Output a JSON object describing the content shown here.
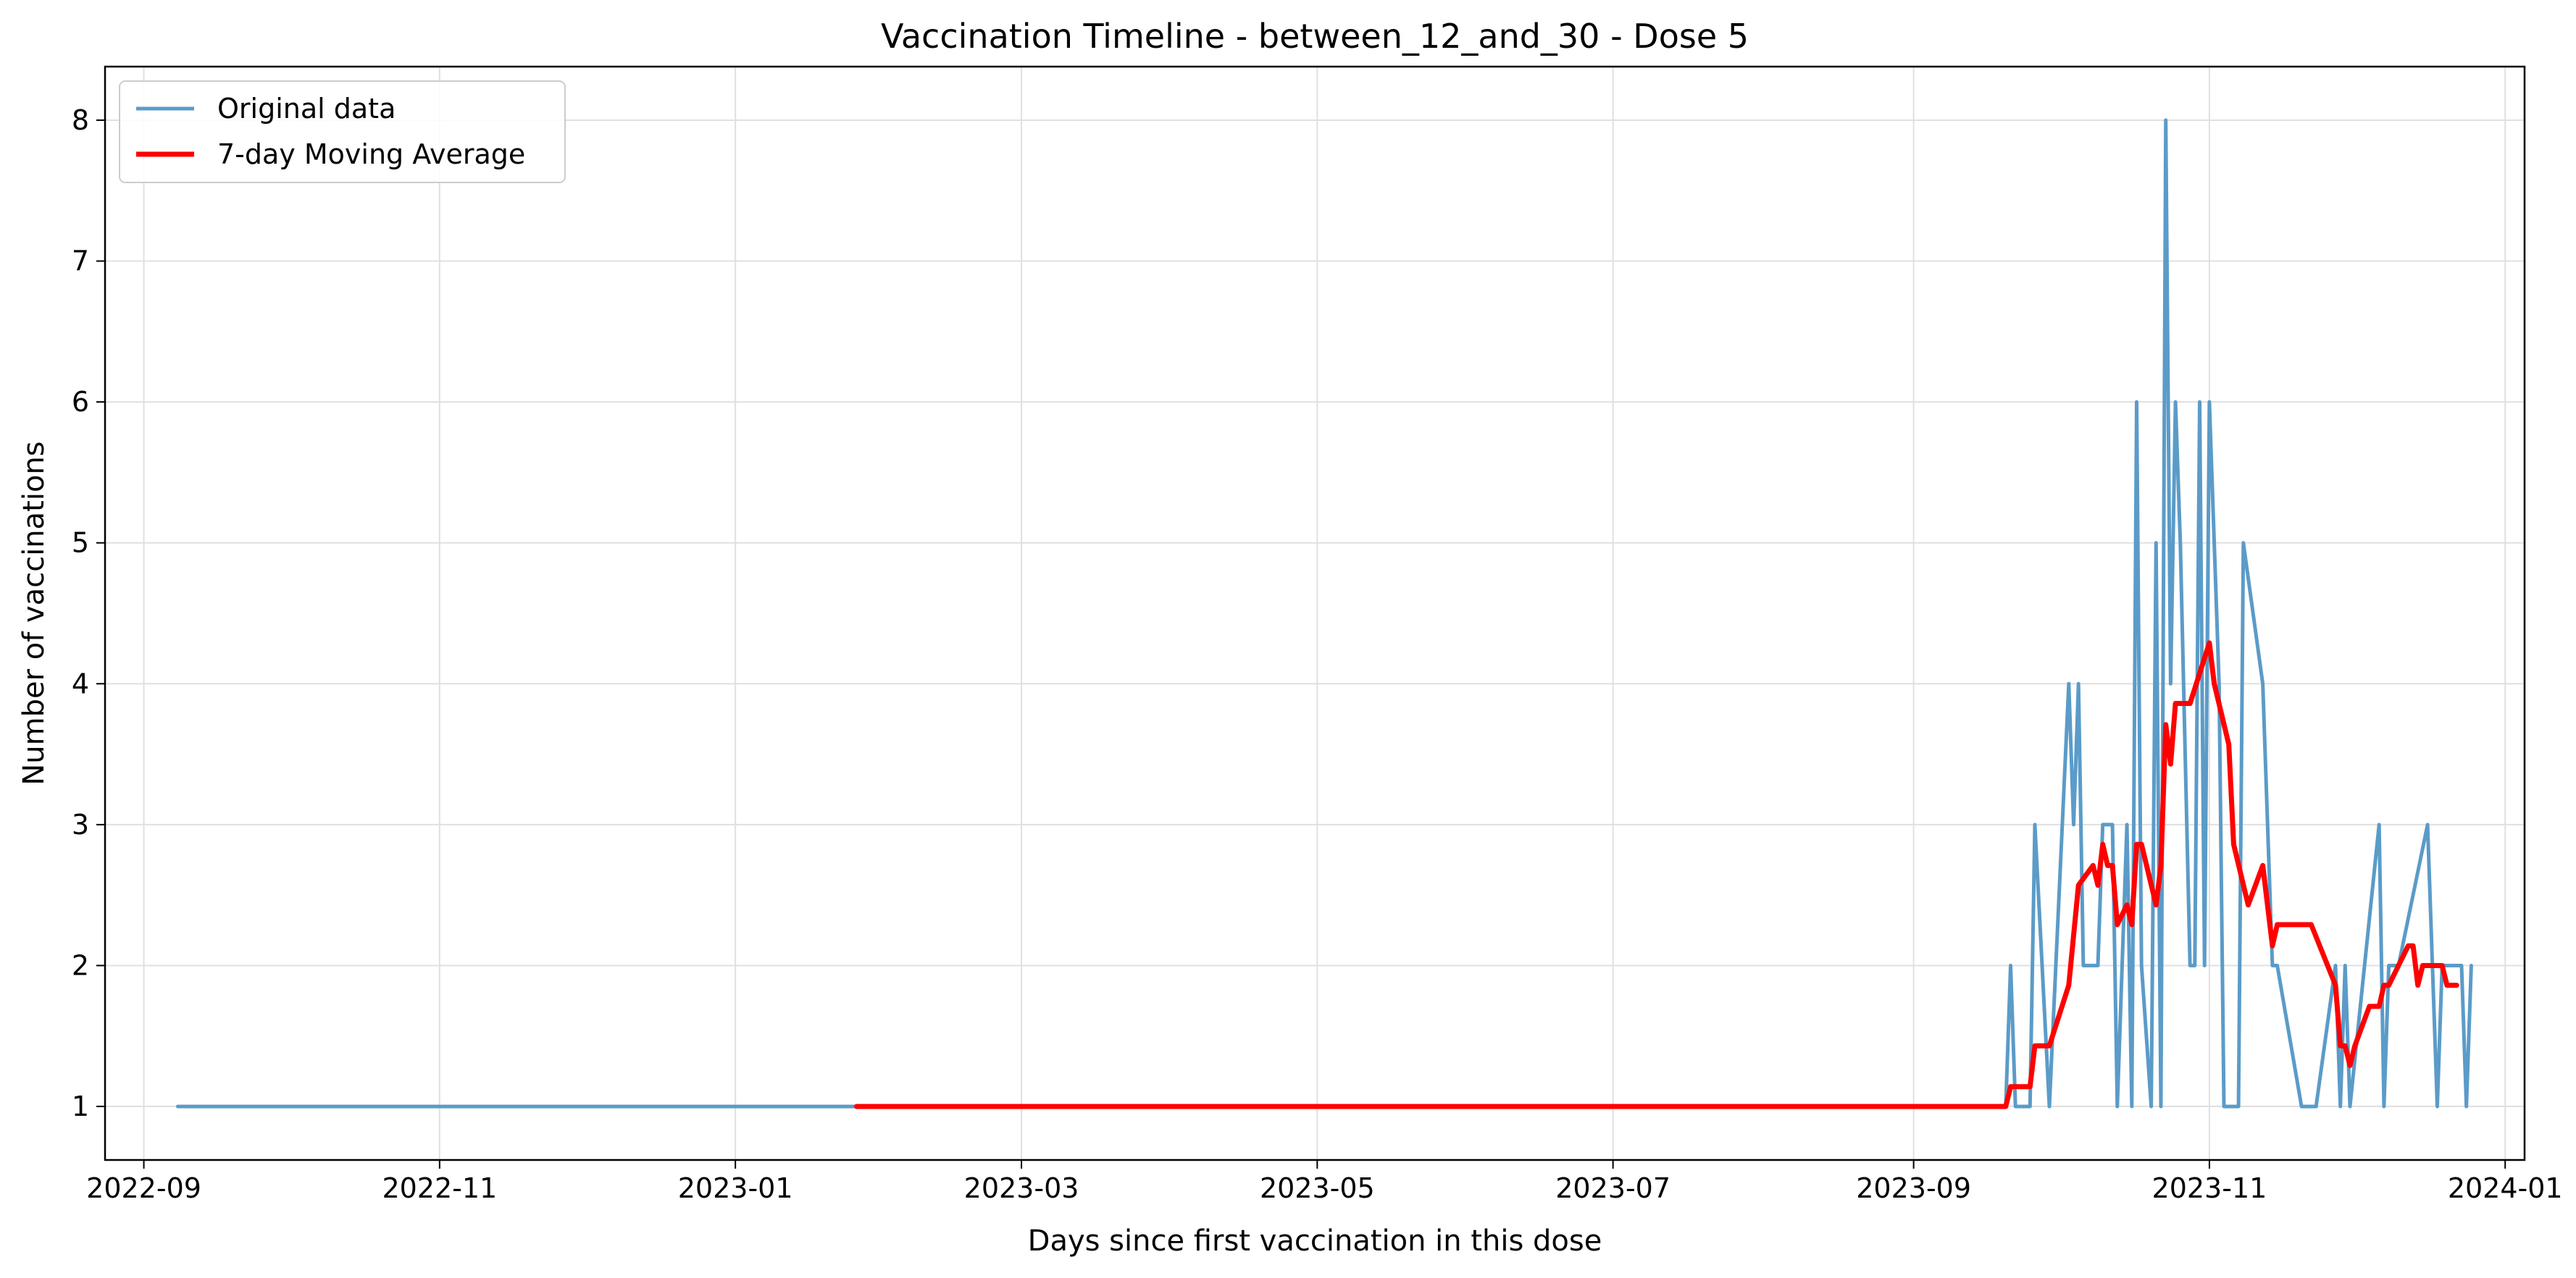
{
  "chart_data": {
    "type": "line",
    "title": "Vaccination Timeline - between_12_and_30 - Dose 5",
    "xlabel": "Days since first vaccination in this dose",
    "ylabel": "Number of vaccinations",
    "x_type": "date",
    "xlim": [
      "2022-08-24",
      "2024-01-05"
    ],
    "ylim": [
      0.62,
      8.38
    ],
    "grid": true,
    "legend_position": "top-left",
    "x_ticks": [
      "2022-09",
      "2022-11",
      "2023-01",
      "2023-03",
      "2023-05",
      "2023-07",
      "2023-09",
      "2023-11",
      "2024-01"
    ],
    "y_ticks": [
      "1",
      "2",
      "3",
      "4",
      "5",
      "6",
      "7",
      "8"
    ],
    "series": [
      {
        "name": "Original data",
        "color": "#5b9bc8",
        "points": [
          [
            "2022-09-08",
            1
          ],
          [
            "2023-01-26",
            1
          ],
          [
            "2023-09-20",
            1
          ],
          [
            "2023-09-21",
            2
          ],
          [
            "2023-09-22",
            1
          ],
          [
            "2023-09-25",
            1
          ],
          [
            "2023-09-26",
            3
          ],
          [
            "2023-09-29",
            1
          ],
          [
            "2023-10-03",
            4
          ],
          [
            "2023-10-04",
            3
          ],
          [
            "2023-10-05",
            4
          ],
          [
            "2023-10-06",
            2
          ],
          [
            "2023-10-09",
            2
          ],
          [
            "2023-10-10",
            3
          ],
          [
            "2023-10-12",
            3
          ],
          [
            "2023-10-13",
            1
          ],
          [
            "2023-10-15",
            3
          ],
          [
            "2023-10-16",
            1
          ],
          [
            "2023-10-17",
            6
          ],
          [
            "2023-10-18",
            2
          ],
          [
            "2023-10-20",
            1
          ],
          [
            "2023-10-21",
            5
          ],
          [
            "2023-10-22",
            1
          ],
          [
            "2023-10-23",
            8
          ],
          [
            "2023-10-24",
            4
          ],
          [
            "2023-10-25",
            6
          ],
          [
            "2023-10-26",
            5
          ],
          [
            "2023-10-28",
            2
          ],
          [
            "2023-10-29",
            2
          ],
          [
            "2023-10-30",
            6
          ],
          [
            "2023-10-31",
            2
          ],
          [
            "2023-11-01",
            6
          ],
          [
            "2023-11-03",
            4
          ],
          [
            "2023-11-04",
            1
          ],
          [
            "2023-11-07",
            1
          ],
          [
            "2023-11-08",
            5
          ],
          [
            "2023-11-12",
            4
          ],
          [
            "2023-11-14",
            2
          ],
          [
            "2023-11-15",
            2
          ],
          [
            "2023-11-20",
            1
          ],
          [
            "2023-11-23",
            1
          ],
          [
            "2023-11-27",
            2
          ],
          [
            "2023-11-28",
            1
          ],
          [
            "2023-11-29",
            2
          ],
          [
            "2023-11-30",
            1
          ],
          [
            "2023-12-06",
            3
          ],
          [
            "2023-12-07",
            1
          ],
          [
            "2023-12-08",
            2
          ],
          [
            "2023-12-10",
            2
          ],
          [
            "2023-12-16",
            3
          ],
          [
            "2023-12-18",
            1
          ],
          [
            "2023-12-19",
            2
          ],
          [
            "2023-12-22",
            2
          ],
          [
            "2023-12-23",
            2
          ],
          [
            "2023-12-24",
            1
          ],
          [
            "2023-12-25",
            2
          ]
        ]
      },
      {
        "name": "7-day Moving Average",
        "color": "#ff0000",
        "points": [
          [
            "2023-01-26",
            1
          ],
          [
            "2023-09-20",
            1
          ],
          [
            "2023-09-21",
            1.14
          ],
          [
            "2023-09-25",
            1.14
          ],
          [
            "2023-09-26",
            1.43
          ],
          [
            "2023-09-29",
            1.43
          ],
          [
            "2023-10-03",
            1.86
          ],
          [
            "2023-10-05",
            2.57
          ],
          [
            "2023-10-08",
            2.71
          ],
          [
            "2023-10-09",
            2.57
          ],
          [
            "2023-10-10",
            2.86
          ],
          [
            "2023-10-11",
            2.71
          ],
          [
            "2023-10-12",
            2.71
          ],
          [
            "2023-10-13",
            2.29
          ],
          [
            "2023-10-15",
            2.43
          ],
          [
            "2023-10-16",
            2.29
          ],
          [
            "2023-10-17",
            2.86
          ],
          [
            "2023-10-18",
            2.86
          ],
          [
            "2023-10-21",
            2.43
          ],
          [
            "2023-10-22",
            2.71
          ],
          [
            "2023-10-23",
            3.71
          ],
          [
            "2023-10-24",
            3.43
          ],
          [
            "2023-10-25",
            3.86
          ],
          [
            "2023-10-28",
            3.86
          ],
          [
            "2023-11-01",
            4.29
          ],
          [
            "2023-11-02",
            4.0
          ],
          [
            "2023-11-05",
            3.57
          ],
          [
            "2023-11-06",
            2.86
          ],
          [
            "2023-11-09",
            2.43
          ],
          [
            "2023-11-12",
            2.71
          ],
          [
            "2023-11-14",
            2.14
          ],
          [
            "2023-11-15",
            2.29
          ],
          [
            "2023-11-22",
            2.29
          ],
          [
            "2023-11-27",
            1.86
          ],
          [
            "2023-11-28",
            1.43
          ],
          [
            "2023-11-29",
            1.43
          ],
          [
            "2023-11-30",
            1.29
          ],
          [
            "2023-12-01",
            1.43
          ],
          [
            "2023-12-04",
            1.71
          ],
          [
            "2023-12-06",
            1.71
          ],
          [
            "2023-12-07",
            1.86
          ],
          [
            "2023-12-08",
            1.86
          ],
          [
            "2023-12-12",
            2.14
          ],
          [
            "2023-12-13",
            2.14
          ],
          [
            "2023-12-14",
            1.86
          ],
          [
            "2023-12-15",
            2.0
          ],
          [
            "2023-12-19",
            2.0
          ],
          [
            "2023-12-20",
            1.86
          ],
          [
            "2023-12-22",
            1.86
          ]
        ]
      }
    ]
  }
}
